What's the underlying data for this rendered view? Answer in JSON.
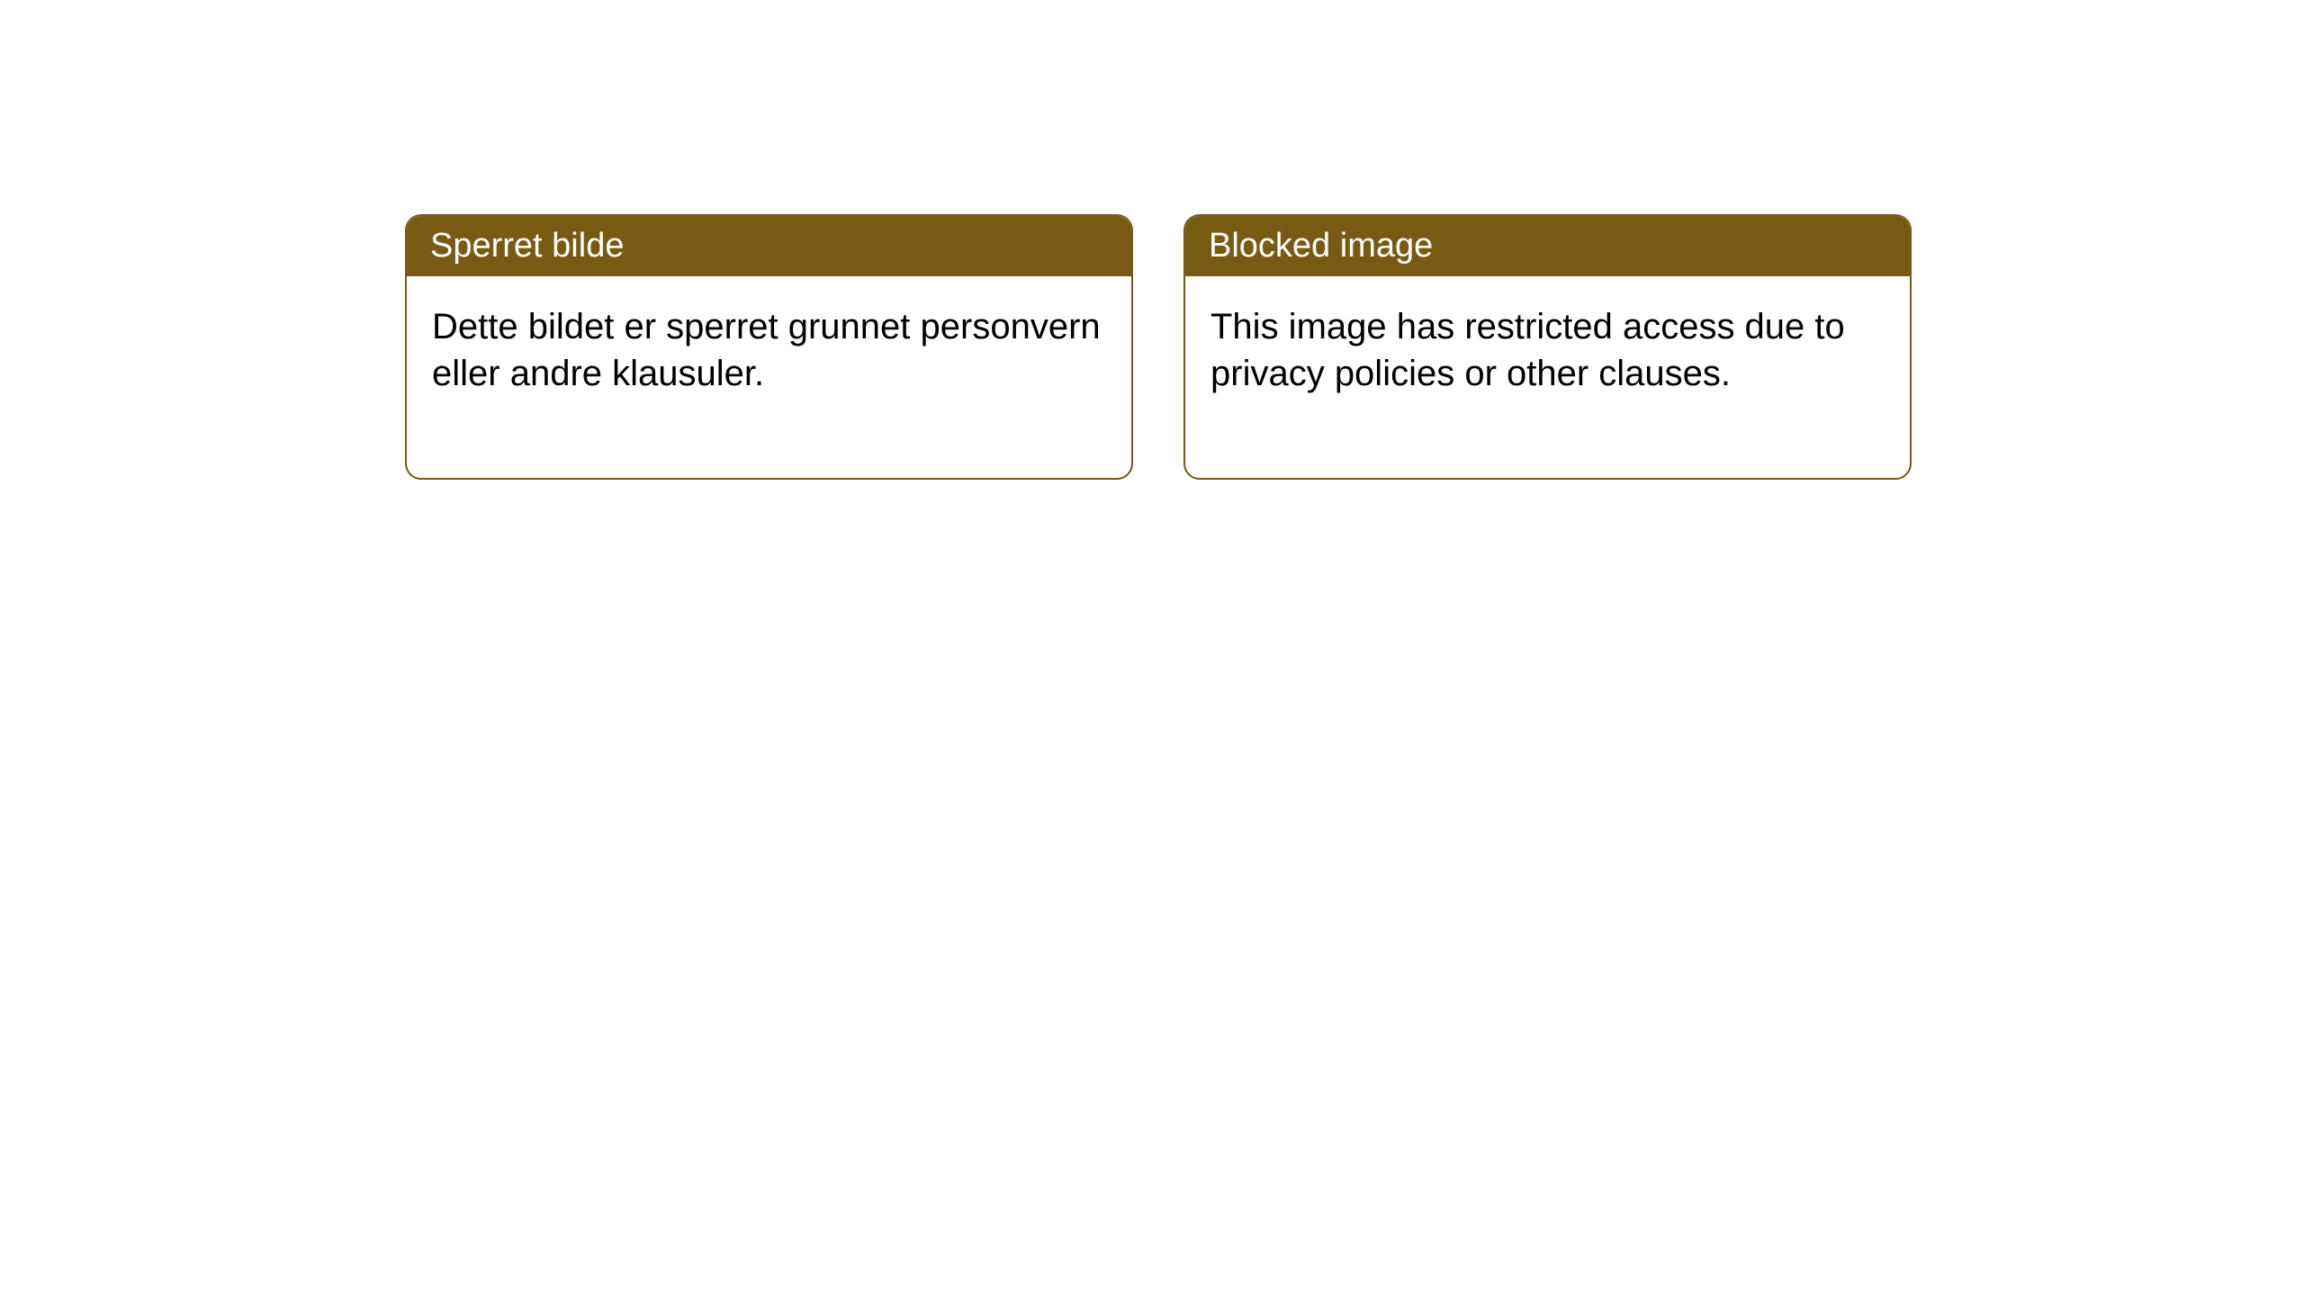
{
  "cards": [
    {
      "title": "Sperret bilde",
      "body": "Dette bildet er sperret grunnet personvern eller andre klausuler."
    },
    {
      "title": "Blocked image",
      "body": "This image has restricted access due to privacy policies or other clauses."
    }
  ],
  "style": {
    "header_bg": "#785a12",
    "header_fg": "#ffffff",
    "border_color": "#785a12",
    "card_bg": "#ffffff",
    "body_color": "#000000",
    "border_radius": 18,
    "title_fontsize": 38,
    "body_fontsize": 40
  }
}
